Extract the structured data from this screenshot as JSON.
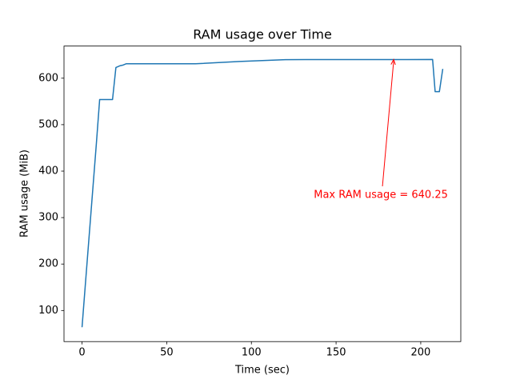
{
  "chart_data": {
    "type": "line",
    "title": "RAM usage over Time",
    "x_label": "Time (sec)",
    "y_label": "RAM usage (MiB)",
    "x": [
      0,
      2,
      8.5,
      10.4,
      18,
      20,
      22.6,
      24,
      26,
      67,
      93,
      120,
      207,
      208.5,
      211,
      213
    ],
    "values": [
      64,
      158,
      461,
      554,
      554,
      623,
      627,
      628,
      631,
      631,
      636,
      640,
      640.25,
      571,
      571,
      620
    ],
    "color": "#1f77b4",
    "xlim": [
      -10.65,
      223.65
    ],
    "xticks": [
      0,
      50,
      100,
      150,
      200
    ],
    "ylim": [
      33.1,
      669.2
    ],
    "yticks": [
      100,
      200,
      300,
      400,
      500,
      600
    ],
    "grid": false,
    "annotation": {
      "text": "Max RAM usage = 640.25",
      "x": 184,
      "y": 640.25,
      "color": "red"
    }
  }
}
